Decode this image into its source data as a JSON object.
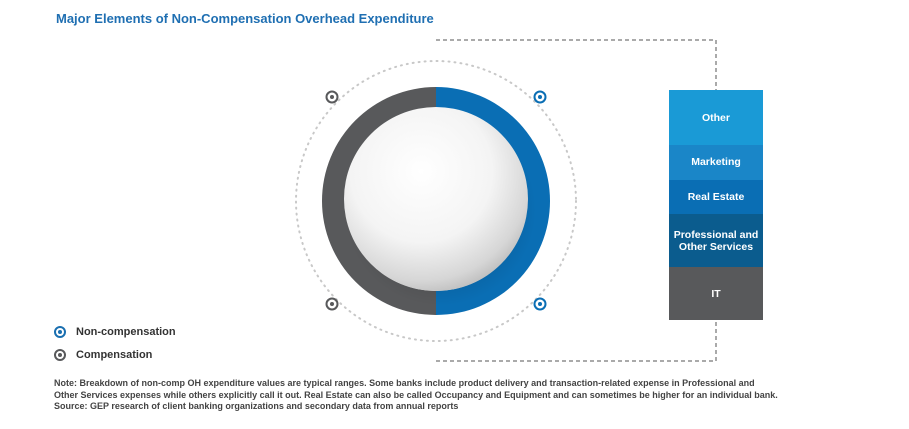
{
  "title": "Major Elements of Non-Compensation Overhead Expenditure",
  "chart_data": {
    "type": "donut",
    "series": [
      {
        "name": "Non-compensation",
        "share": 0.5,
        "color": "#0a6eb4"
      },
      {
        "name": "Compensation",
        "share": 0.5,
        "color": "#58595b"
      }
    ],
    "breakdown": {
      "type": "stacked-bar",
      "of": "Non-compensation",
      "segments": [
        {
          "label": "Other",
          "color": "#1a9ad6",
          "share": 0.24
        },
        {
          "label": "Marketing",
          "color": "#1a86c8",
          "share": 0.15
        },
        {
          "label": "Real Estate",
          "color": "#0a6eb4",
          "share": 0.15
        },
        {
          "label": "Professional and Other Services",
          "color": "#0b5c8e",
          "share": 0.23
        },
        {
          "label": "IT",
          "color": "#58595b",
          "share": 0.23
        }
      ]
    }
  },
  "legend": [
    {
      "label": "Non-compensation",
      "color": "#1a6fb0"
    },
    {
      "label": "Compensation",
      "color": "#58595b"
    }
  ],
  "note": {
    "lines": [
      "Note: Breakdown of non-comp OH expenditure values are typical ranges. Some banks include product delivery and transaction-related expense in Professional and",
      "Other Services expenses while others explicitly call it out. Real Estate can also be called Occupancy and Equipment and can sometimes be higher for an individual bank.",
      "Source: GEP research of client banking organizations and secondary data from annual reports"
    ]
  }
}
